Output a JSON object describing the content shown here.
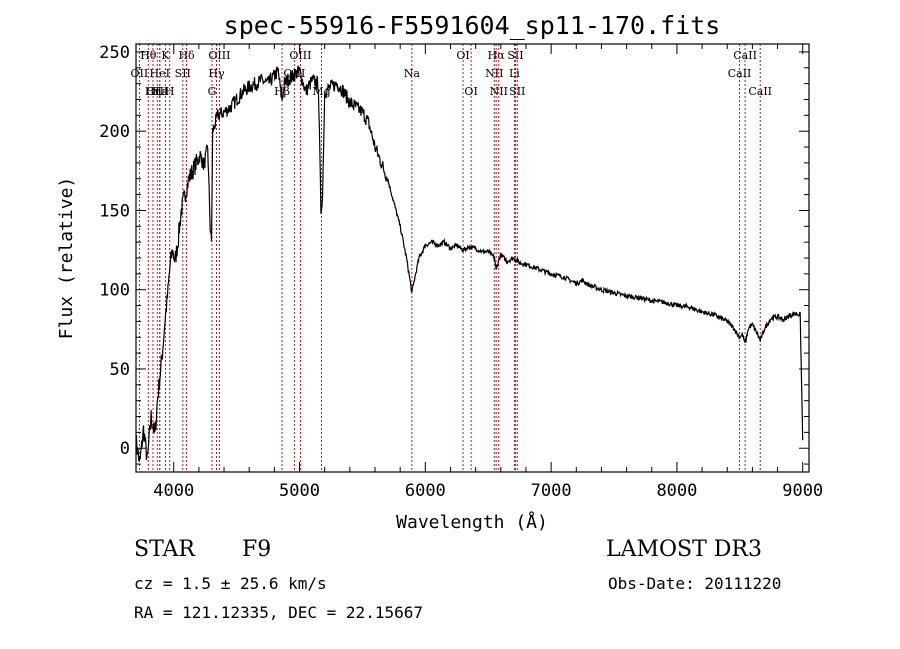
{
  "chart_data": {
    "type": "line",
    "title": "spec-55916-F5591604_sp11-170.fits",
    "xlabel": "Wavelength (Å)",
    "ylabel": "Flux (relative)",
    "xlim": [
      3700,
      9050
    ],
    "ylim": [
      -15,
      255
    ],
    "x_ticks": [
      4000,
      5000,
      6000,
      7000,
      8000,
      9000
    ],
    "y_ticks": [
      0,
      50,
      100,
      150,
      200,
      250
    ],
    "grid": false,
    "series": [
      {
        "name": "flux",
        "x": [
          3700,
          3730,
          3760,
          3790,
          3820,
          3850,
          3870,
          3890,
          3910,
          3930,
          3950,
          3970,
          3990,
          4010,
          4030,
          4060,
          4090,
          4120,
          4150,
          4180,
          4210,
          4240,
          4270,
          4290,
          4300,
          4310,
          4330,
          4350,
          4400,
          4450,
          4500,
          4550,
          4600,
          4650,
          4700,
          4750,
          4800,
          4830,
          4850,
          4861,
          4880,
          4900,
          4950,
          5000,
          5050,
          5100,
          5150,
          5170,
          5183,
          5200,
          5250,
          5300,
          5350,
          5400,
          5450,
          5500,
          5550,
          5600,
          5650,
          5700,
          5750,
          5800,
          5850,
          5880,
          5893,
          5910,
          5950,
          6000,
          6050,
          6100,
          6150,
          6200,
          6250,
          6300,
          6350,
          6400,
          6450,
          6500,
          6550,
          6563,
          6580,
          6600,
          6650,
          6700,
          6750,
          6800,
          6900,
          7000,
          7100,
          7200,
          7250,
          7300,
          7400,
          7500,
          7600,
          7700,
          7800,
          7900,
          8000,
          8100,
          8200,
          8300,
          8400,
          8450,
          8498,
          8520,
          8542,
          8570,
          8600,
          8640,
          8662,
          8700,
          8750,
          8800,
          8850,
          8900,
          8950,
          8980,
          9000
        ],
        "y": [
          5,
          -10,
          12,
          -8,
          20,
          8,
          30,
          45,
          60,
          80,
          95,
          115,
          125,
          118,
          128,
          150,
          160,
          170,
          175,
          180,
          185,
          178,
          190,
          140,
          130,
          200,
          205,
          210,
          212,
          215,
          220,
          225,
          228,
          230,
          232,
          230,
          235,
          238,
          225,
          220,
          230,
          232,
          235,
          238,
          225,
          232,
          230,
          150,
          160,
          225,
          228,
          230,
          225,
          218,
          215,
          212,
          205,
          190,
          180,
          170,
          155,
          140,
          120,
          105,
          98,
          105,
          120,
          128,
          130,
          128,
          130,
          126,
          128,
          125,
          127,
          126,
          124,
          124,
          120,
          112,
          118,
          122,
          118,
          120,
          117,
          116,
          113,
          110,
          108,
          104,
          106,
          103,
          100,
          98,
          96,
          95,
          93,
          92,
          90,
          89,
          86,
          84,
          80,
          76,
          70,
          72,
          66,
          76,
          78,
          72,
          68,
          76,
          82,
          83,
          81,
          84,
          85,
          84,
          5
        ]
      }
    ],
    "lines": [
      {
        "label": "Hθ",
        "wl": 3798,
        "row": 0
      },
      {
        "label": "OII",
        "wl": 3727,
        "row": 1
      },
      {
        "label": "OIII",
        "wl": 3869,
        "row": 2
      },
      {
        "label": "Hε",
        "wl": 3889,
        "row": 2
      },
      {
        "label": "HeI",
        "wl": 3889,
        "row": 1
      },
      {
        "label": "K",
        "wl": 3934,
        "row": 0
      },
      {
        "label": "Hη",
        "wl": 3835,
        "row": 2
      },
      {
        "label": "H",
        "wl": 3968,
        "row": 2
      },
      {
        "label": "SII",
        "wl": 4072,
        "row": 1
      },
      {
        "label": "Hδ",
        "wl": 4102,
        "row": 0
      },
      {
        "label": "OIII",
        "wl": 4363,
        "row": 0
      },
      {
        "label": "Hγ",
        "wl": 4340,
        "row": 1
      },
      {
        "label": "G",
        "wl": 4304,
        "row": 2
      },
      {
        "label": "OIII",
        "wl": 5007,
        "row": 0
      },
      {
        "label": "OIII",
        "wl": 4959,
        "row": 1
      },
      {
        "label": "Hβ",
        "wl": 4861,
        "row": 2
      },
      {
        "label": "Mg",
        "wl": 5175,
        "row": 2
      },
      {
        "label": "Na",
        "wl": 5893,
        "row": 1
      },
      {
        "label": "OI",
        "wl": 6300,
        "row": 0
      },
      {
        "label": "OI",
        "wl": 6364,
        "row": 2
      },
      {
        "label": "Hα",
        "wl": 6563,
        "row": 0
      },
      {
        "label": "NII",
        "wl": 6548,
        "row": 1
      },
      {
        "label": "NII",
        "wl": 6584,
        "row": 2
      },
      {
        "label": "SII",
        "wl": 6717,
        "row": 0
      },
      {
        "label": "Li",
        "wl": 6708,
        "row": 1
      },
      {
        "label": "SII",
        "wl": 6731,
        "row": 2
      },
      {
        "label": "CaII",
        "wl": 8542,
        "row": 0
      },
      {
        "label": "CaII",
        "wl": 8498,
        "row": 1
      },
      {
        "label": "CaII",
        "wl": 8662,
        "row": 2
      }
    ],
    "line_color": "#b00000"
  },
  "info": {
    "obj_class": "STAR",
    "subclass": "F9",
    "survey": "LAMOST DR3",
    "cz": "cz = 1.5 ± 25.6 km/s",
    "obs_date": "Obs-Date: 20111220",
    "radec": "RA = 121.12335, DEC =  22.15667"
  }
}
